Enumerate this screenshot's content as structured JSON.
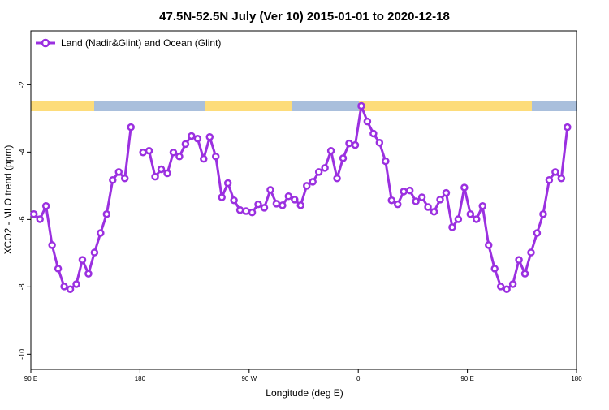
{
  "chart_data": {
    "type": "line",
    "title": "47.5N-52.5N July (Ver 10)   2015-01-01 to 2020-12-18",
    "x_label": "Longitude (deg E)",
    "y_label": "XCO2 - MLO trend (ppm)",
    "xlim": [
      90,
      540
    ],
    "ylim": [
      -10.45,
      -0.4
    ],
    "xticks": [
      {
        "value": 90,
        "label": "90 E"
      },
      {
        "value": 180,
        "label": "180"
      },
      {
        "value": 270,
        "label": "90 W"
      },
      {
        "value": 360,
        "label": "0"
      },
      {
        "value": 450,
        "label": "90 E"
      },
      {
        "value": 540,
        "label": "180"
      }
    ],
    "yticks": [
      -10,
      -8,
      -6,
      -4,
      -2
    ],
    "legend": "top-left",
    "x": [
      92.5,
      97.5,
      102.5,
      107.5,
      112.5,
      117.5,
      122.5,
      127.5,
      132.5,
      137.5,
      142.5,
      147.5,
      152.5,
      157.5,
      162.5,
      167.5,
      172.5,
      177.5,
      182.5,
      187.5,
      192.5,
      197.5,
      202.5,
      207.5,
      212.5,
      217.5,
      222.5,
      227.5,
      232.5,
      237.5,
      242.5,
      247.5,
      252.5,
      257.5,
      262.5,
      267.5,
      272.5,
      277.5,
      282.5,
      287.5,
      292.5,
      297.5,
      302.5,
      307.5,
      312.5,
      317.5,
      322.5,
      327.5,
      332.5,
      337.5,
      342.5,
      347.5,
      352.5,
      357.5,
      362.5,
      367.5,
      372.5,
      377.5,
      382.5,
      387.5,
      392.5,
      397.5,
      402.5,
      407.5,
      412.5,
      417.5,
      422.5,
      427.5,
      432.5,
      437.5,
      442.5,
      447.5,
      452.5,
      457.5,
      462.5,
      467.5,
      472.5,
      477.5,
      482.5,
      487.5,
      492.5,
      497.5,
      502.5,
      507.5,
      512.5,
      517.5,
      522.5,
      527.5,
      532.5
    ],
    "series": [
      {
        "name": "Land (Nadir&Glint) and Ocean (Glint)",
        "color": "#9b30e0",
        "values": [
          -5.84,
          -5.99,
          -5.6,
          -6.76,
          -7.46,
          -7.99,
          -8.07,
          -7.92,
          -7.2,
          -7.61,
          -6.98,
          -6.4,
          -5.84,
          -4.83,
          -4.59,
          -4.78,
          -3.26,
          null,
          -4.01,
          -3.96,
          -4.73,
          -4.51,
          -4.63,
          -4.01,
          -4.13,
          -3.76,
          -3.52,
          -3.6,
          -4.2,
          -3.55,
          -4.13,
          -5.34,
          -4.92,
          -5.43,
          -5.72,
          -5.75,
          -5.79,
          -5.55,
          -5.65,
          -5.12,
          -5.53,
          -5.58,
          -5.31,
          -5.41,
          -5.58,
          -5.0,
          -4.88,
          -4.59,
          -4.47,
          -3.96,
          -4.78,
          -4.18,
          -3.74,
          -3.79,
          -2.63,
          -3.09,
          -3.45,
          -3.72,
          -4.27,
          -5.43,
          -5.55,
          -5.17,
          -5.14,
          -5.46,
          -5.34,
          -5.63,
          -5.77,
          -5.41,
          -5.21,
          -6.23,
          -5.99,
          -5.05,
          -5.84,
          -5.99,
          -5.6,
          -6.76,
          -7.46,
          -7.99,
          -8.07,
          -7.92,
          -7.2,
          -7.61,
          -6.98,
          -6.4,
          -5.84,
          -4.83,
          -4.59,
          -4.78,
          -3.26
        ]
      }
    ]
  }
}
